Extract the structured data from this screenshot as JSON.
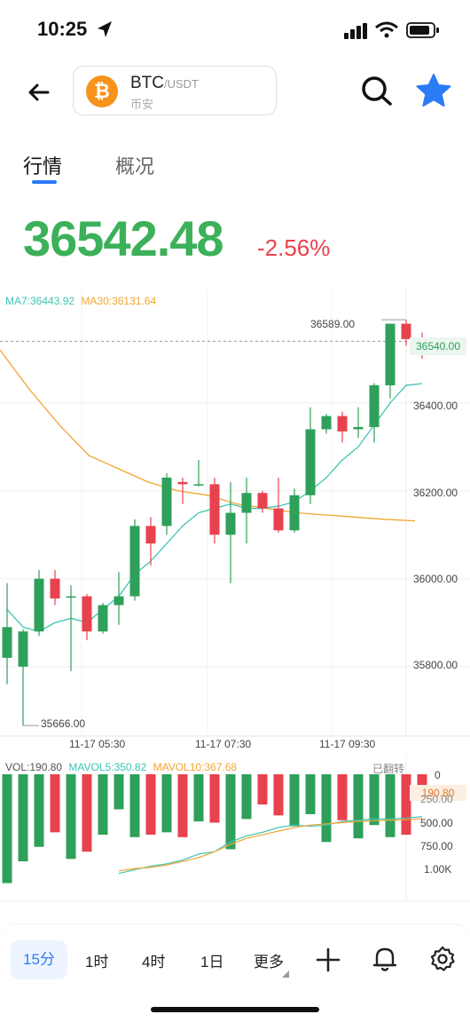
{
  "status": {
    "time": "10:25"
  },
  "pair": {
    "symbol": "BTC",
    "quote": "/USDT",
    "exchange": "币安",
    "coin_letter": "₿"
  },
  "tabs": [
    "行情",
    "概况"
  ],
  "price": {
    "last": "36542.48",
    "change": "-2.56%"
  },
  "ma_legend": {
    "ma7": "MA7:36443.92",
    "ma30": "MA30:36131.64"
  },
  "price_axis": [
    "36400.00",
    "36200.00",
    "36000.00",
    "35800.00"
  ],
  "current_price_label": "36540.00",
  "high_label": "36589.00",
  "low_label": "35666.00",
  "time_axis": [
    "11-17 05:30",
    "11-17 07:30",
    "11-17 09:30"
  ],
  "vol_legend": {
    "vol": "VOL:190.80",
    "mavol5": "MAVOL5:350.82",
    "mavol10": "MAVOL10:367.68",
    "flipped": "已翻转"
  },
  "vol_axis": [
    "0",
    "250.00",
    "500.00",
    "750.00",
    "1.00K"
  ],
  "current_vol_label": "190.80",
  "timeframes": [
    "15分",
    "1时",
    "4时",
    "1日",
    "更多"
  ],
  "colors": {
    "up": "#2EA05A",
    "down": "#E8424E",
    "ma7": "#3FC5B5",
    "ma30": "#F2A530",
    "accent": "#2A7CF6"
  },
  "chart_data": {
    "type": "candlestick",
    "ylim": [
      35640,
      36660
    ],
    "candles": [
      {
        "o": 35820,
        "h": 35990,
        "l": 35760,
        "c": 35890
      },
      {
        "o": 35800,
        "h": 35885,
        "l": 35666,
        "c": 35880
      },
      {
        "o": 35880,
        "h": 36020,
        "l": 35870,
        "c": 36000
      },
      {
        "o": 36000,
        "h": 36020,
        "l": 35940,
        "c": 35955
      },
      {
        "o": 35960,
        "h": 35985,
        "l": 35790,
        "c": 35960
      },
      {
        "o": 35960,
        "h": 35965,
        "l": 35860,
        "c": 35880
      },
      {
        "o": 35880,
        "h": 35945,
        "l": 35875,
        "c": 35940
      },
      {
        "o": 35940,
        "h": 36015,
        "l": 35895,
        "c": 35960
      },
      {
        "o": 35960,
        "h": 36135,
        "l": 35950,
        "c": 36120
      },
      {
        "o": 36120,
        "h": 36140,
        "l": 36030,
        "c": 36080
      },
      {
        "o": 36120,
        "h": 36240,
        "l": 36100,
        "c": 36230
      },
      {
        "o": 36220,
        "h": 36230,
        "l": 36170,
        "c": 36215
      },
      {
        "o": 36215,
        "h": 36270,
        "l": 36210,
        "c": 36215
      },
      {
        "o": 36215,
        "h": 36230,
        "l": 36080,
        "c": 36100
      },
      {
        "o": 36100,
        "h": 36220,
        "l": 35990,
        "c": 36150
      },
      {
        "o": 36150,
        "h": 36230,
        "l": 36080,
        "c": 36195
      },
      {
        "o": 36195,
        "h": 36200,
        "l": 36150,
        "c": 36160
      },
      {
        "o": 36160,
        "h": 36230,
        "l": 36105,
        "c": 36110
      },
      {
        "o": 36110,
        "h": 36205,
        "l": 36105,
        "c": 36190
      },
      {
        "o": 36190,
        "h": 36390,
        "l": 36170,
        "c": 36340
      },
      {
        "o": 36340,
        "h": 36375,
        "l": 36330,
        "c": 36370
      },
      {
        "o": 36370,
        "h": 36380,
        "l": 36310,
        "c": 36335
      },
      {
        "o": 36340,
        "h": 36390,
        "l": 36320,
        "c": 36345
      },
      {
        "o": 36345,
        "h": 36445,
        "l": 36310,
        "c": 36440
      },
      {
        "o": 36440,
        "h": 36580,
        "l": 36410,
        "c": 36580
      },
      {
        "o": 36580,
        "h": 36589,
        "l": 36530,
        "c": 36545
      },
      {
        "o": 36545,
        "h": 36560,
        "l": 36500,
        "c": 36540
      }
    ],
    "ma7": [
      35930,
      35890,
      35880,
      35900,
      35910,
      35900,
      35930,
      35960,
      36010,
      36040,
      36080,
      36120,
      36150,
      36160,
      36170,
      36160,
      36160,
      36165,
      36175,
      36200,
      36230,
      36270,
      36300,
      36350,
      36400,
      36440,
      36443.92
    ],
    "ma30": [
      36520,
      36430,
      36350,
      36280,
      36250,
      36220,
      36200,
      36190,
      36170,
      36160,
      36150,
      36145,
      36140,
      36135,
      36131.64
    ],
    "volume": [
      900,
      720,
      600,
      480,
      700,
      640,
      500,
      290,
      520,
      500,
      480,
      520,
      390,
      400,
      620,
      370,
      250,
      340,
      430,
      330,
      560,
      380,
      530,
      420,
      520,
      500,
      190.8
    ],
    "mavol5": [
      820,
      790,
      760,
      740,
      710,
      660,
      640,
      560,
      510,
      480,
      440,
      420,
      430,
      420,
      390,
      380,
      370,
      370,
      362,
      350.82
    ],
    "mavol10": [
      800,
      780,
      770,
      750,
      720,
      690,
      640,
      580,
      530,
      500,
      470,
      440,
      420,
      410,
      400,
      390,
      385,
      380,
      376,
      367.68
    ]
  }
}
